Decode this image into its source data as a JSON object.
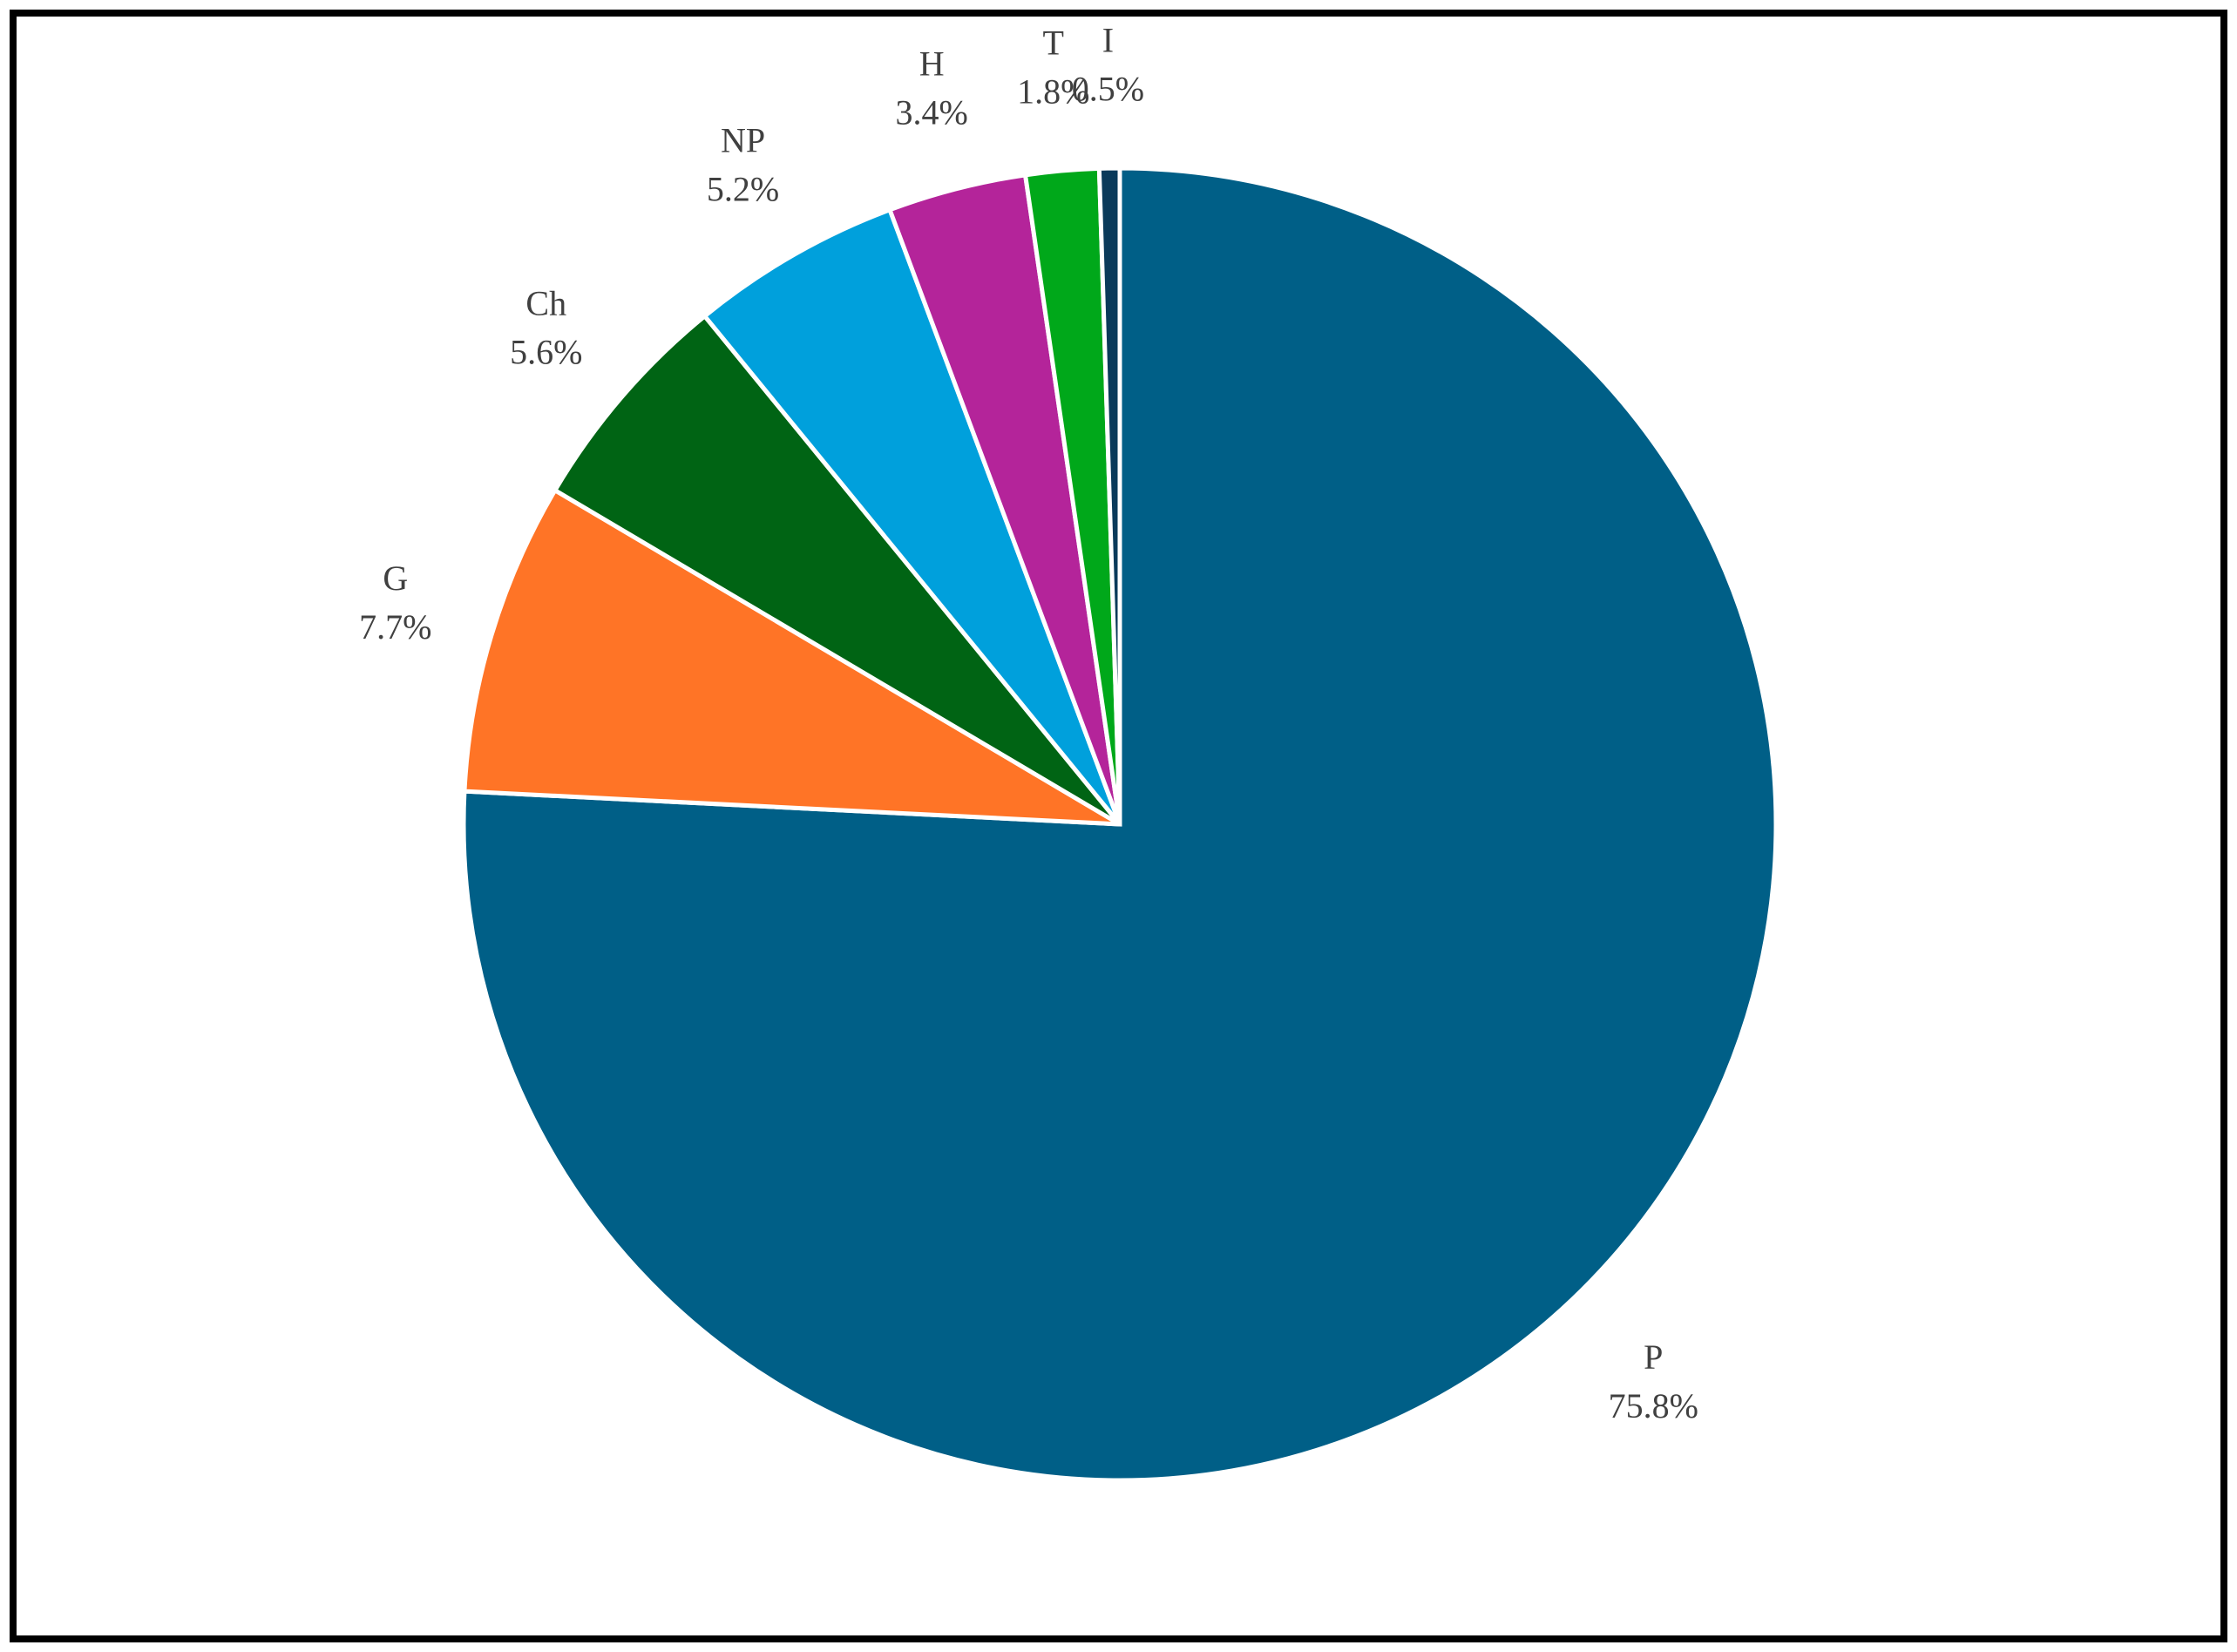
{
  "chart_data": {
    "type": "pie",
    "categories": [
      "P",
      "G",
      "Ch",
      "NP",
      "H",
      "T",
      "I"
    ],
    "values": [
      75.8,
      7.7,
      5.6,
      5.2,
      3.4,
      1.8,
      0.5
    ],
    "value_labels": [
      "75.8%",
      "7.7%",
      "5.6%",
      "5.2%",
      "3.4%",
      "1.8%",
      "0.5%"
    ],
    "colors": [
      "#005f87",
      "#ff7426",
      "#006414",
      "#00a0dc",
      "#b4249a",
      "#00a81a",
      "#0a3a5a"
    ]
  }
}
